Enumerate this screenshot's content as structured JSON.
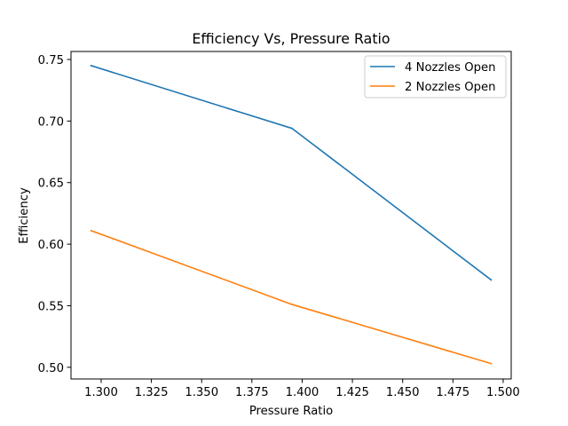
{
  "chart_data": {
    "type": "line",
    "title": "Efficiency Vs, Pressure Ratio",
    "xlabel": "Pressure Ratio",
    "ylabel": "Efficiency",
    "xlim": [
      1.285,
      1.504
    ],
    "ylim": [
      0.4905,
      0.7565
    ],
    "xticks": [
      1.3,
      1.325,
      1.35,
      1.375,
      1.4,
      1.425,
      1.45,
      1.475,
      1.5
    ],
    "xtick_labels": [
      "1.300",
      "1.325",
      "1.350",
      "1.375",
      "1.400",
      "1.425",
      "1.450",
      "1.475",
      "1.500"
    ],
    "yticks": [
      0.5,
      0.55,
      0.6,
      0.65,
      0.7,
      0.75
    ],
    "ytick_labels": [
      "0.50",
      "0.55",
      "0.60",
      "0.65",
      "0.70",
      "0.75"
    ],
    "grid": false,
    "legend_position": "upper right",
    "series": [
      {
        "name": "4 Nozzles Open",
        "color": "#1f77b4",
        "x": [
          1.295,
          1.395,
          1.494
        ],
        "y": [
          0.745,
          0.694,
          0.571
        ]
      },
      {
        "name": "2 Nozzles Open",
        "color": "#ff7f0e",
        "x": [
          1.295,
          1.395,
          1.494
        ],
        "y": [
          0.611,
          0.551,
          0.503
        ]
      }
    ]
  }
}
